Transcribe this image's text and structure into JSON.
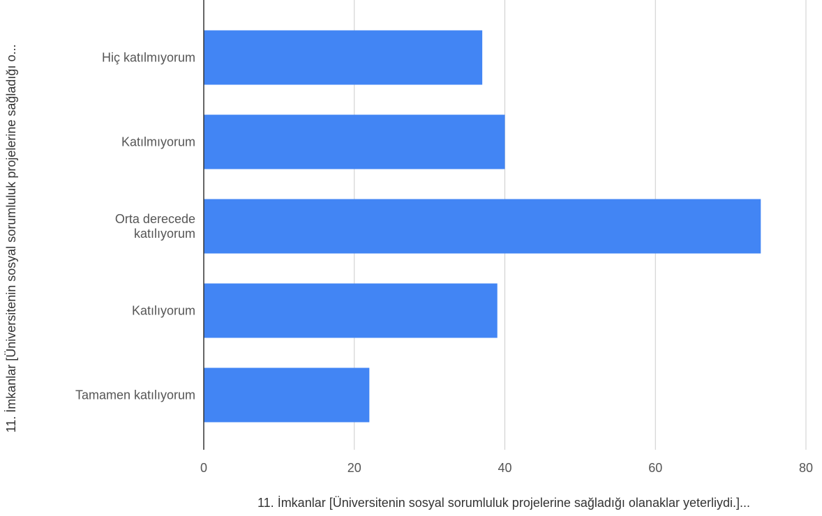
{
  "chart_data": {
    "type": "bar",
    "orientation": "horizontal",
    "categories": [
      [
        "Hiç katılmıyorum"
      ],
      [
        "Katılmıyorum"
      ],
      [
        "Orta derecede",
        "katılıyorum"
      ],
      [
        "Katılıyorum"
      ],
      [
        "Tamamen katılıyorum"
      ]
    ],
    "values": [
      37,
      40,
      74,
      39,
      22
    ],
    "xlim": [
      0,
      80
    ],
    "xticks": [
      "0",
      "20",
      "40",
      "60",
      "80"
    ],
    "xlabel": "11. İmkanlar [Üniversitenin sosyal sorumluluk projelerine sağladığı olanaklar yeterliydi.]...",
    "ylabel": "11. İmkanlar [Üniversitenin sosyal sorumluluk projelerine sağladığı o...",
    "grid": true,
    "colors": {
      "bar": "#4285f4",
      "grid": "#cccccc",
      "axis": "#333333",
      "label": "#555555"
    }
  }
}
